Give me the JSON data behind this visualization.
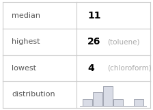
{
  "median": 11,
  "highest_val": 26,
  "highest_label": "toluene",
  "lowest_val": 4,
  "lowest_label": "chloroform",
  "rows": [
    "median",
    "highest",
    "lowest",
    "distribution"
  ],
  "hist_bars": [
    1,
    2,
    3,
    1,
    0,
    1
  ],
  "bar_color": "#d9dce6",
  "bar_edge_color": "#a0a4b0",
  "bg_color": "#ffffff",
  "grid_color": "#cccccc",
  "text_color_label": "#555555",
  "text_color_value": "#000000",
  "text_color_annotation": "#aaaaaa"
}
